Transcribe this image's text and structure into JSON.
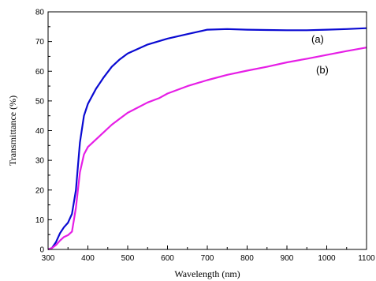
{
  "chart_data": {
    "type": "line",
    "title": "",
    "xlabel": "Wavelength (nm)",
    "ylabel": "Transmittance (%)",
    "xlim": [
      300,
      1100
    ],
    "ylim": [
      0,
      80
    ],
    "x_ticks": [
      300,
      400,
      500,
      600,
      700,
      800,
      900,
      1000,
      1100
    ],
    "y_ticks": [
      0,
      10,
      20,
      30,
      40,
      50,
      60,
      70,
      80
    ],
    "grid": false,
    "legend": "none",
    "annotations": [
      "(a)",
      "(b)"
    ],
    "series": [
      {
        "label": "(a)",
        "color": "#0a0ad2",
        "points": [
          [
            300,
            0
          ],
          [
            310,
            0.5
          ],
          [
            320,
            2.5
          ],
          [
            330,
            5.5
          ],
          [
            340,
            7.5
          ],
          [
            350,
            9
          ],
          [
            360,
            12
          ],
          [
            370,
            20
          ],
          [
            380,
            36
          ],
          [
            390,
            45
          ],
          [
            400,
            49
          ],
          [
            420,
            54
          ],
          [
            440,
            58
          ],
          [
            460,
            61.5
          ],
          [
            480,
            64
          ],
          [
            500,
            66
          ],
          [
            550,
            69
          ],
          [
            600,
            71
          ],
          [
            650,
            72.5
          ],
          [
            700,
            74
          ],
          [
            750,
            74.2
          ],
          [
            800,
            74
          ],
          [
            850,
            73.9
          ],
          [
            900,
            73.8
          ],
          [
            950,
            73.8
          ],
          [
            1000,
            74
          ],
          [
            1050,
            74.2
          ],
          [
            1100,
            74.5
          ]
        ]
      },
      {
        "label": "(b)",
        "color": "#e61ee6",
        "points": [
          [
            300,
            0
          ],
          [
            310,
            0.5
          ],
          [
            320,
            1.5
          ],
          [
            330,
            3
          ],
          [
            340,
            4.2
          ],
          [
            350,
            4.8
          ],
          [
            360,
            6
          ],
          [
            370,
            14
          ],
          [
            380,
            26
          ],
          [
            390,
            32
          ],
          [
            400,
            34.5
          ],
          [
            420,
            37
          ],
          [
            440,
            39.5
          ],
          [
            460,
            42
          ],
          [
            480,
            44
          ],
          [
            500,
            46
          ],
          [
            550,
            49.5
          ],
          [
            580,
            51
          ],
          [
            600,
            52.5
          ],
          [
            650,
            55
          ],
          [
            700,
            57
          ],
          [
            750,
            58.8
          ],
          [
            800,
            60.2
          ],
          [
            850,
            61.5
          ],
          [
            900,
            63
          ],
          [
            950,
            64.2
          ],
          [
            1000,
            65.5
          ],
          [
            1050,
            66.8
          ],
          [
            1100,
            68
          ]
        ]
      }
    ]
  }
}
